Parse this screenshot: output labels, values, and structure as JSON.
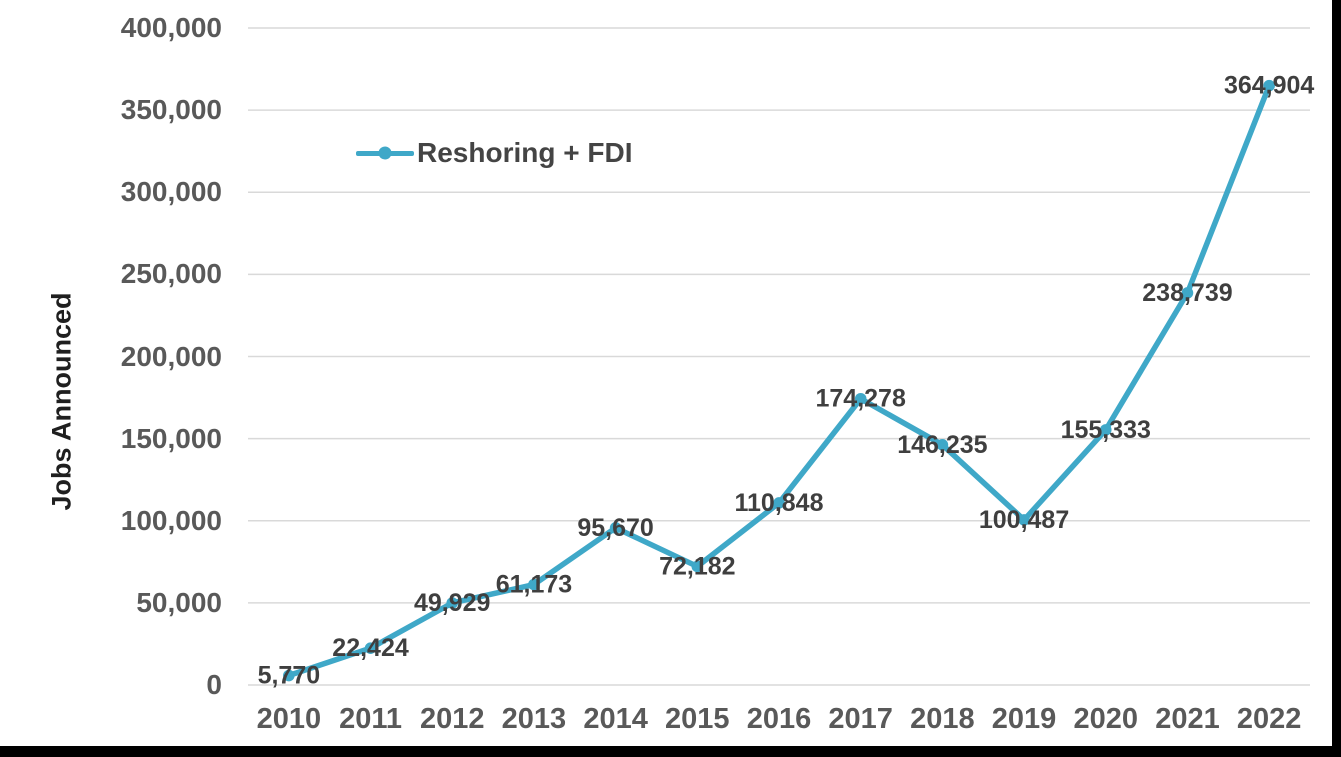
{
  "frame": {
    "background": "#ffffff",
    "border_color": "#000000"
  },
  "chart_data": {
    "type": "line",
    "title": "",
    "xlabel": "",
    "ylabel": "Jobs Announced",
    "categories": [
      "2010",
      "2011",
      "2012",
      "2013",
      "2014",
      "2015",
      "2016",
      "2017",
      "2018",
      "2019",
      "2020",
      "2021",
      "2022"
    ],
    "series": [
      {
        "name": "Reshoring + FDI",
        "color": "#3FA8C8",
        "values": [
          5770,
          22424,
          49929,
          61173,
          95670,
          72182,
          110848,
          174278,
          146235,
          100487,
          155333,
          238739,
          364904
        ]
      }
    ],
    "data_labels": [
      "5,770",
      "22,424",
      "49,929",
      "61,173",
      "95,670",
      "72,182",
      "110,848",
      "174,278",
      "146,235",
      "100,487",
      "155,333",
      "238,739",
      "364,904"
    ],
    "y_ticks": [
      "0",
      "50,000",
      "100,000",
      "150,000",
      "200,000",
      "250,000",
      "300,000",
      "350,000",
      "400,000"
    ],
    "ylim": [
      0,
      400000
    ],
    "y_tick_step": 50000,
    "grid": "horizontal",
    "gridline_color": "#D9D9D9",
    "axis_label_color": "#595959",
    "data_label_color": "#3F3F3F",
    "legend_position": "inside-top-left",
    "marker": "circle"
  }
}
